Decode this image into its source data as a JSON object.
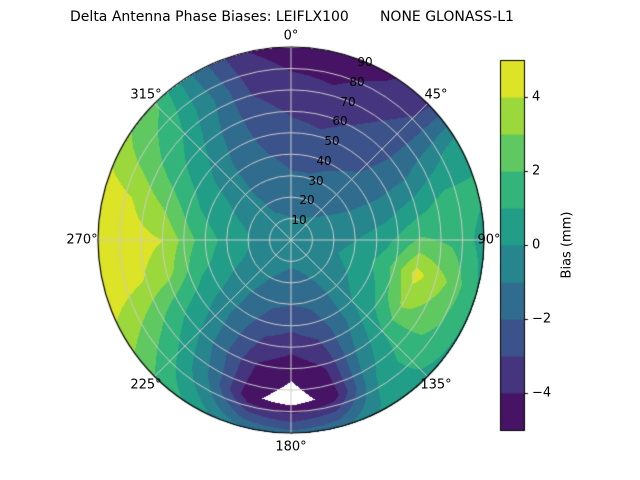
{
  "title": "Delta Antenna Phase Biases: LEIFLX100       NONE GLONASS-L1",
  "chart_data": {
    "type": "heatmap",
    "projection": "polar",
    "title": "Delta Antenna Phase Biases: LEIFLX100       NONE GLONASS-L1",
    "description": "Filled contour (viridis) of antenna phase bias over azimuth (0-360 deg, clockwise from top) and zenith angle (0 at center to 90 at rim); values below -5 mm shown white",
    "angular_labels": [
      "0°",
      "45°",
      "90°",
      "135°",
      "180°",
      "225°",
      "270°",
      "315°"
    ],
    "radial_labels": [
      "10",
      "20",
      "30",
      "40",
      "50",
      "60",
      "70",
      "80",
      "90"
    ],
    "azimuth_deg": [
      0,
      15,
      30,
      45,
      60,
      75,
      90,
      105,
      120,
      135,
      150,
      165,
      180,
      195,
      210,
      225,
      240,
      255,
      270,
      285,
      300,
      315,
      330,
      345
    ],
    "zenith_deg": [
      0,
      15,
      30,
      45,
      60,
      75,
      90
    ],
    "bias_mm": [
      [
        -0.5,
        -1.2,
        -1.9,
        -2.5,
        -3.1,
        -3.8,
        -4.6
      ],
      [
        -0.5,
        -1.2,
        -1.9,
        -2.6,
        -3.3,
        -4.0,
        -4.8
      ],
      [
        -0.5,
        -1.1,
        -1.7,
        -2.3,
        -2.9,
        -3.5,
        -4.2
      ],
      [
        -0.5,
        -1.0,
        -1.5,
        -2.0,
        -2.4,
        -2.8,
        -3.2
      ],
      [
        -0.5,
        -0.8,
        -1.1,
        -1.3,
        -1.2,
        -0.4,
        0.6
      ],
      [
        -0.5,
        -0.6,
        -0.6,
        -0.3,
        0.5,
        1.4,
        1.2
      ],
      [
        -0.5,
        -0.4,
        0.0,
        0.8,
        2.2,
        1.8,
        0.6
      ],
      [
        -0.5,
        -0.3,
        0.3,
        1.5,
        4.4,
        3.0,
        0.9
      ],
      [
        -0.5,
        -0.4,
        0.0,
        1.0,
        3.2,
        2.4,
        0.9
      ],
      [
        -0.5,
        -0.5,
        -0.4,
        0.2,
        1.0,
        1.4,
        0.8
      ],
      [
        -0.5,
        -0.8,
        -1.2,
        -1.5,
        -1.0,
        -0.2,
        0.3
      ],
      [
        -0.5,
        -1.0,
        -1.8,
        -2.8,
        -3.9,
        -4.6,
        -1.2
      ],
      [
        -0.5,
        -1.1,
        -2.0,
        -3.2,
        -4.7,
        -5.5,
        -1.6
      ],
      [
        -0.5,
        -1.0,
        -1.8,
        -2.9,
        -4.1,
        -4.8,
        -1.0
      ],
      [
        -0.5,
        -0.8,
        -1.3,
        -1.8,
        -2.0,
        -1.2,
        0.6
      ],
      [
        -0.5,
        -0.6,
        -0.7,
        -0.6,
        0.0,
        1.0,
        2.0
      ],
      [
        -0.5,
        -0.4,
        -0.1,
        0.5,
        1.4,
        2.6,
        3.6
      ],
      [
        -0.5,
        -0.3,
        0.4,
        1.4,
        3.4,
        4.2,
        4.8
      ],
      [
        -0.5,
        -0.2,
        0.6,
        2.0,
        4.0,
        4.5,
        4.9
      ],
      [
        -0.5,
        -0.3,
        0.3,
        1.2,
        2.8,
        3.9,
        4.6
      ],
      [
        -0.5,
        -0.5,
        -0.1,
        0.5,
        1.4,
        2.4,
        3.3
      ],
      [
        -0.5,
        -0.8,
        -0.8,
        -0.5,
        0.3,
        1.2,
        2.2
      ],
      [
        -0.5,
        -1.0,
        -1.3,
        -1.5,
        -1.3,
        -0.8,
        -1.2
      ],
      [
        -0.5,
        -1.1,
        -1.6,
        -2.1,
        -2.6,
        -3.2,
        -3.9
      ]
    ],
    "levels": [
      -5,
      -4,
      -3,
      -2,
      -1,
      0,
      1,
      2,
      3,
      4,
      5
    ],
    "under_color": "#ffffff",
    "grid_color": "#cccccc",
    "colorbar": {
      "label": "Bias (mm)",
      "ticks": [
        "−4",
        "−2",
        "0",
        "2",
        "4"
      ],
      "tick_values": [
        -4,
        -2,
        0,
        2,
        4
      ],
      "vmin": -5,
      "vmax": 5
    },
    "colormap": {
      "name": "viridis",
      "stops": [
        [
          0.0,
          "#440154"
        ],
        [
          0.1,
          "#482475"
        ],
        [
          0.2,
          "#414487"
        ],
        [
          0.3,
          "#355f8d"
        ],
        [
          0.4,
          "#2a788e"
        ],
        [
          0.5,
          "#21918c"
        ],
        [
          0.6,
          "#22a884"
        ],
        [
          0.7,
          "#44bf70"
        ],
        [
          0.8,
          "#7ad151"
        ],
        [
          0.9,
          "#bddf26"
        ],
        [
          1.0,
          "#fde725"
        ]
      ]
    }
  }
}
